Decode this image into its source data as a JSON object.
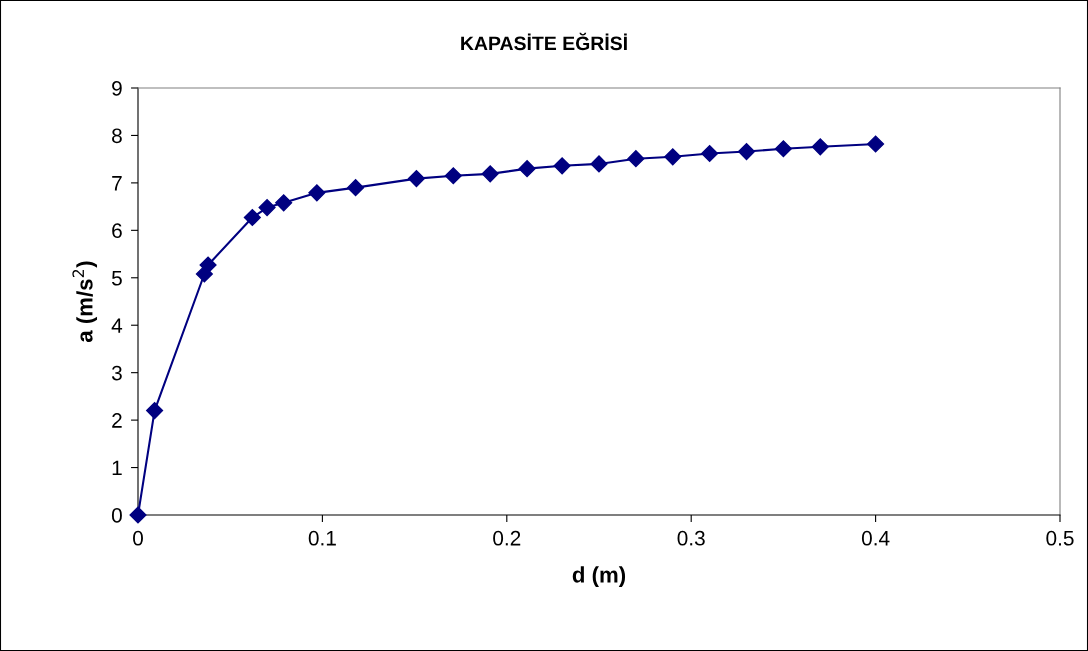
{
  "chart_data": {
    "type": "line",
    "title": "KAPASİTE EĞRİSİ",
    "xlabel": "d (m)",
    "ylabel": "a (m/s$^{2}$)",
    "x": [
      0,
      0.009,
      0.036,
      0.038,
      0.062,
      0.07,
      0.079,
      0.097,
      0.118,
      0.151,
      0.171,
      0.191,
      0.211,
      0.23,
      0.25,
      0.27,
      0.29,
      0.31,
      0.33,
      0.35,
      0.37,
      0.4
    ],
    "series": [
      {
        "color": "#000080",
        "values": [
          0,
          2.2,
          5.08,
          5.27,
          6.27,
          6.48,
          6.58,
          6.79,
          6.9,
          7.09,
          7.15,
          7.19,
          7.3,
          7.36,
          7.4,
          7.51,
          7.55,
          7.62,
          7.66,
          7.72,
          7.76,
          7.82
        ]
      }
    ],
    "xlim": [
      0,
      0.5
    ],
    "xticks": [
      0,
      0.1,
      0.2,
      0.3,
      0.4,
      0.5
    ],
    "ylim": [
      0,
      9
    ],
    "yticks": [
      0,
      1,
      2,
      3,
      4,
      5,
      6,
      7,
      8,
      9
    ],
    "marker": "diamond",
    "line_style": "solid",
    "grid": false
  }
}
